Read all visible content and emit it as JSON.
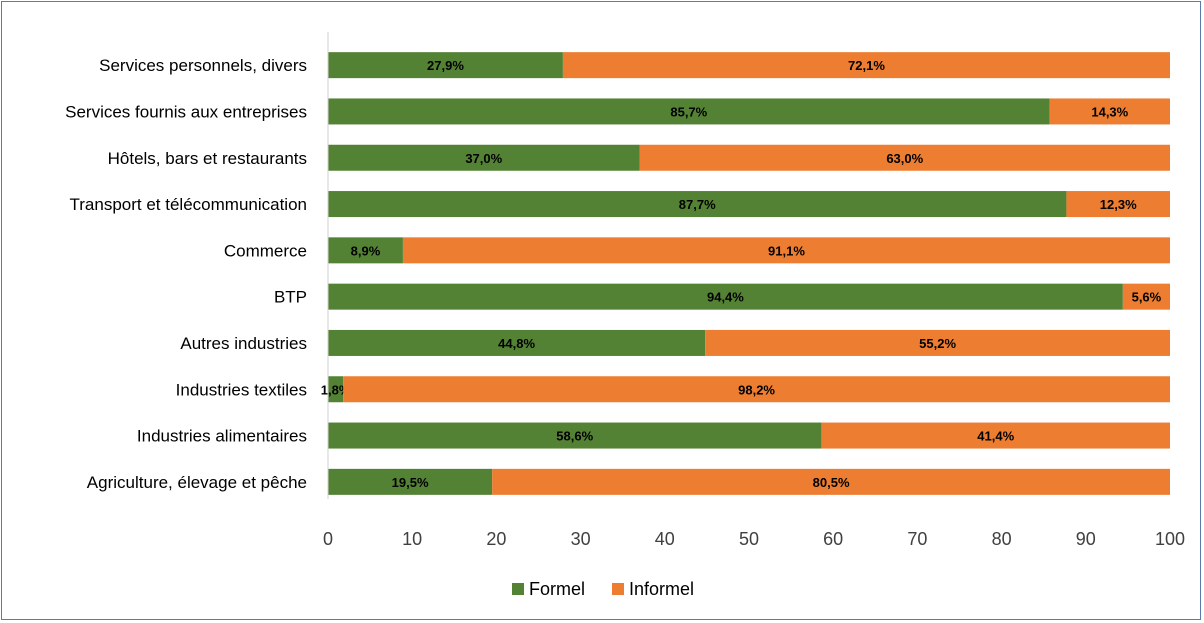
{
  "chart_data": {
    "type": "bar",
    "orientation": "horizontal",
    "stacked": true,
    "categories": [
      "Services personnels, divers",
      "Services fournis aux entreprises",
      "Hôtels, bars et restaurants",
      "Transport et télécommunication",
      "Commerce",
      "BTP",
      "Autres industries",
      "Industries textiles",
      "Industries alimentaires",
      "Agriculture, élevage et pêche"
    ],
    "series": [
      {
        "name": "Formel",
        "color": "#548235",
        "values": [
          27.9,
          85.7,
          37.0,
          87.7,
          8.9,
          94.4,
          44.8,
          1.8,
          58.6,
          19.5
        ],
        "labels": [
          "27,9%",
          "85,7%",
          "37,0%",
          "87,7%",
          "8,9%",
          "94,4%",
          "44,8%",
          "1,8%",
          "58,6%",
          "19,5%"
        ]
      },
      {
        "name": "Informel",
        "color": "#ED7D31",
        "values": [
          72.1,
          14.3,
          63.0,
          12.3,
          91.1,
          5.6,
          55.2,
          98.2,
          41.4,
          80.5
        ],
        "labels": [
          "72,1%",
          "14,3%",
          "63,0%",
          "12,3%",
          "91,1%",
          "5,6%",
          "55,2%",
          "98,2%",
          "41,4%",
          "80,5%"
        ]
      }
    ],
    "xlim": [
      0,
      100
    ],
    "xticks": [
      "0",
      "10",
      "20",
      "30",
      "40",
      "50",
      "60",
      "70",
      "80",
      "90",
      "100"
    ],
    "grid": false,
    "legend": "bottom",
    "title": "",
    "xlabel": "",
    "ylabel": ""
  }
}
